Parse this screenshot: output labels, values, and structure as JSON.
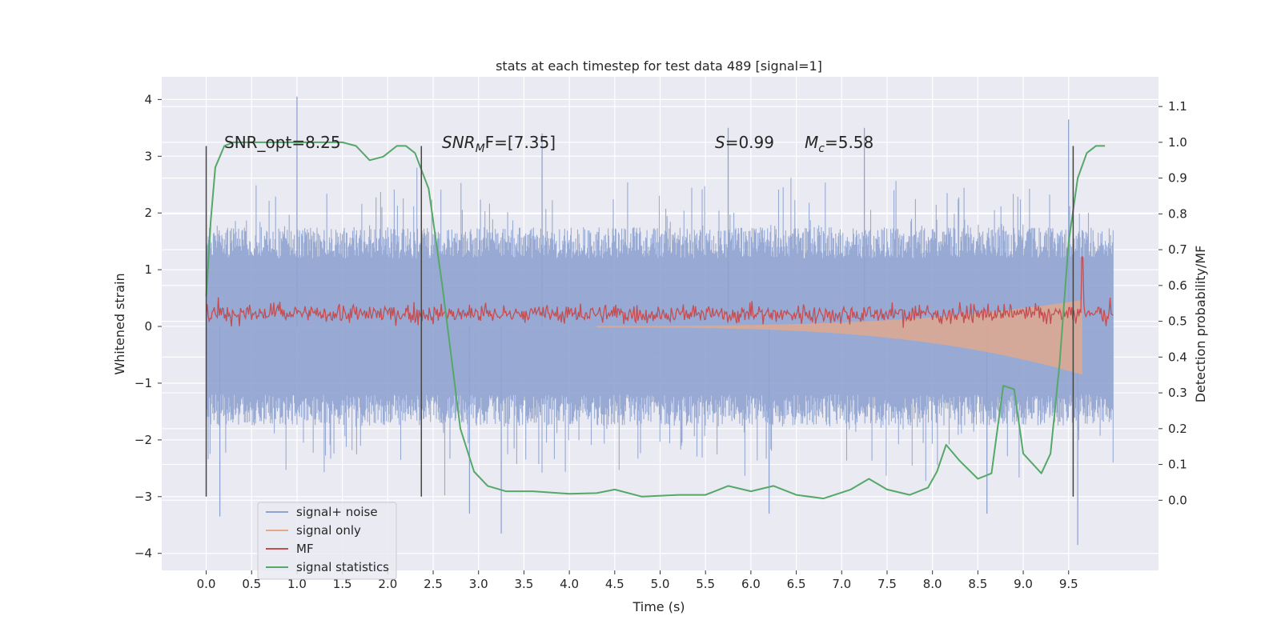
{
  "chart_data": {
    "type": "line",
    "title": "stats at each timestep for test data 489 [signal=1]",
    "xlabel": "Time (s)",
    "ylabel_left": "Whitened strain",
    "ylabel_right": "Detection probability/MF",
    "xlim": [
      -0.49,
      10.49
    ],
    "ylim_left": [
      -4.3,
      4.4
    ],
    "ylim_right": [
      -0.196,
      1.183
    ],
    "x_ticks": [
      0.0,
      0.5,
      1.0,
      1.5,
      2.0,
      2.5,
      3.0,
      3.5,
      4.0,
      4.5,
      5.0,
      5.5,
      6.0,
      6.5,
      7.0,
      7.5,
      8.0,
      8.5,
      9.0,
      9.5
    ],
    "x_tick_labels": [
      "0.0",
      "0.5",
      "1.0",
      "1.5",
      "2.0",
      "2.5",
      "3.0",
      "3.5",
      "4.0",
      "4.5",
      "5.0",
      "5.5",
      "6.0",
      "6.5",
      "7.0",
      "7.5",
      "8.0",
      "8.5",
      "9.0",
      "9.5"
    ],
    "y_left_ticks": [
      4,
      3,
      2,
      1,
      0,
      -1,
      -2,
      -3,
      -4
    ],
    "y_left_tick_labels": [
      "4",
      "3",
      "2",
      "1",
      "0",
      "−1",
      "−2",
      "−3",
      "−4"
    ],
    "y_right_ticks": [
      1.1,
      1.0,
      0.9,
      0.8,
      0.7,
      0.6,
      0.5,
      0.4,
      0.3,
      0.2,
      0.1,
      0.0
    ],
    "y_right_tick_labels": [
      "1.1",
      "1.0",
      "0.9",
      "0.8",
      "0.7",
      "0.6",
      "0.5",
      "0.4",
      "0.3",
      "0.2",
      "0.1",
      "0.0"
    ],
    "annotations": {
      "snr_opt": "SNR_opt=8.25",
      "snr_mf_base": "SNR",
      "snr_mf_sub": "M",
      "snr_mf_tail": "F=[7.35]",
      "s_label": "S",
      "s_value": "=0.99",
      "mc_base": "M",
      "mc_sub": "c",
      "mc_value": "=5.58"
    },
    "vertical_lines_x": [
      0.0,
      2.37,
      9.55
    ],
    "legend": {
      "location": "lower-left",
      "entries": [
        {
          "label": "signal+ noise",
          "color": "#8fa3cf"
        },
        {
          "label": "signal only",
          "color": "#e8a886"
        },
        {
          "label": "MF",
          "color": "#c44e52"
        },
        {
          "label": "signal statistics",
          "color": "#55a868"
        }
      ]
    },
    "series": [
      {
        "name": "signal+ noise",
        "axis": "left",
        "x_range": [
          0.0,
          9.99
        ],
        "envelope_upper_typical": 1.9,
        "envelope_lower_typical": -1.9,
        "peak_max": 4.05,
        "peak_min": -3.85
      },
      {
        "name": "signal only",
        "axis": "left",
        "x_range": [
          0.0,
          9.65
        ],
        "amplitude_start": 0.02,
        "amplitude_end": 0.85
      },
      {
        "name": "MF",
        "axis": "right",
        "x_range": [
          0.0,
          9.99
        ],
        "baseline": 0.52,
        "spike_x": 9.65,
        "spike_value": 0.68
      },
      {
        "name": "signal statistics",
        "axis": "right",
        "x": [
          0.0,
          0.05,
          0.1,
          0.2,
          0.3,
          0.5,
          1.0,
          1.5,
          1.65,
          1.8,
          1.95,
          2.1,
          2.2,
          2.3,
          2.45,
          2.6,
          2.8,
          2.95,
          3.1,
          3.3,
          3.6,
          4.0,
          4.3,
          4.5,
          4.8,
          5.2,
          5.5,
          5.75,
          6.0,
          6.25,
          6.5,
          6.8,
          7.1,
          7.3,
          7.5,
          7.75,
          7.95,
          8.05,
          8.15,
          8.3,
          8.5,
          8.65,
          8.78,
          8.9,
          9.0,
          9.2,
          9.3,
          9.4,
          9.5,
          9.6,
          9.7,
          9.8,
          9.9
        ],
        "y": [
          0.57,
          0.78,
          0.93,
          0.99,
          1.0,
          1.0,
          1.0,
          1.0,
          0.99,
          0.95,
          0.96,
          0.99,
          0.99,
          0.97,
          0.87,
          0.6,
          0.2,
          0.08,
          0.04,
          0.025,
          0.025,
          0.018,
          0.02,
          0.03,
          0.01,
          0.015,
          0.015,
          0.04,
          0.025,
          0.04,
          0.015,
          0.005,
          0.03,
          0.06,
          0.03,
          0.015,
          0.035,
          0.08,
          0.155,
          0.11,
          0.06,
          0.075,
          0.32,
          0.31,
          0.13,
          0.075,
          0.13,
          0.38,
          0.72,
          0.9,
          0.97,
          0.99,
          0.99
        ]
      }
    ]
  }
}
